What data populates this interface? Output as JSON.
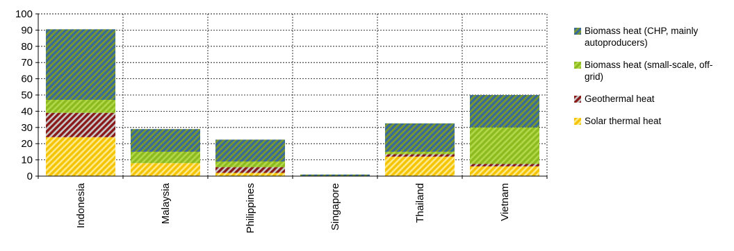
{
  "chart_data": {
    "type": "bar",
    "stacked": true,
    "categories": [
      "Indonesia",
      "Malaysia",
      "Philippines",
      "Singapore",
      "Thailand",
      "Vietnam"
    ],
    "series": [
      {
        "name": "Solar thermal heat",
        "values": [
          24,
          8,
          2,
          0,
          12,
          6
        ],
        "color": "#f5c400",
        "color2": "#ffe98a"
      },
      {
        "name": "Geothermal heat",
        "values": [
          15,
          0,
          3.5,
          0,
          1.5,
          1.5
        ],
        "color": "#8a1a1a",
        "color2": "#c9c9c9"
      },
      {
        "name": "Biomass heat (small-scale, off-grid)",
        "values": [
          8,
          7,
          3.5,
          0,
          1.5,
          22.5
        ],
        "color": "#8dbb1f",
        "color2": "#b2d84a"
      },
      {
        "name": "Biomass heat (CHP, mainly autoproducers)",
        "values": [
          43.5,
          14,
          13.5,
          1,
          17.5,
          20
        ],
        "color": "#3a6b96",
        "color2": "#7a9a2e"
      }
    ],
    "legend_order": [
      3,
      2,
      1,
      0
    ],
    "legend_position": "right",
    "ylim": [
      0,
      100
    ],
    "yticks": [
      0,
      10,
      20,
      30,
      40,
      50,
      60,
      70,
      80,
      90,
      100
    ],
    "grid": true,
    "xlabel": "",
    "ylabel": ""
  }
}
